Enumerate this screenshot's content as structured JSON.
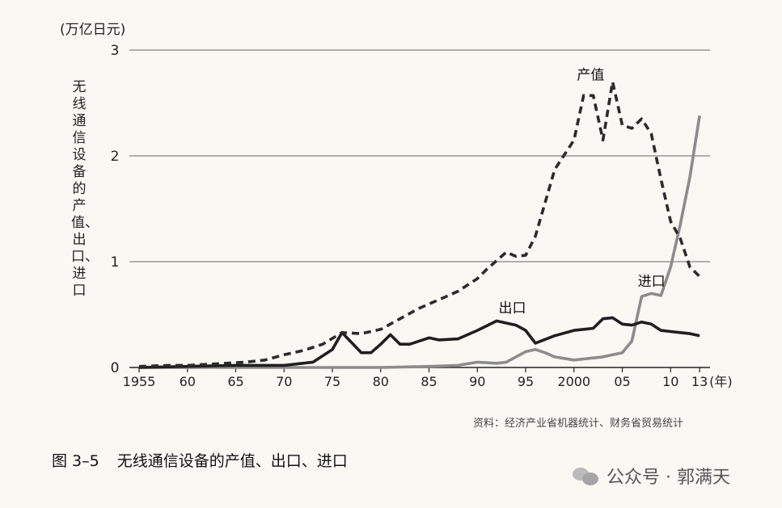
{
  "figure": {
    "unit_label": "(万亿日元)",
    "y_axis_title": "无线通信设备的产值、出口、进口",
    "source": "资料：经济产业省机器统计、财务省贸易统计",
    "caption_number": "图 3–5",
    "caption_text": "无线通信设备的产值、出口、进口"
  },
  "watermark": {
    "text": "公众号 · 郭满天",
    "icon": "wechat-icon"
  },
  "chart_data": {
    "type": "line",
    "title": "",
    "xlabel": "(年)",
    "ylabel": "无线通信设备的产值、出口、进口",
    "unit": "万亿日元",
    "xlim": [
      1955,
      2013
    ],
    "ylim": [
      0,
      3
    ],
    "grid": "horizontal",
    "x_tick_values": [
      1955,
      1960,
      1965,
      1970,
      1975,
      1980,
      1985,
      1990,
      1995,
      2000,
      2005,
      2010,
      2013
    ],
    "x_tick_labels": [
      "1955",
      "60",
      "65",
      "70",
      "75",
      "80",
      "85",
      "90",
      "95",
      "2000",
      "05",
      "10",
      "13"
    ],
    "y_ticks": [
      0,
      1,
      2,
      3
    ],
    "y_tick_labels": [
      "0",
      "1",
      "2",
      "3"
    ],
    "colors": {
      "production": "#2b2b2b",
      "exports": "#1f1f1f",
      "imports": "#8c8c8c"
    },
    "series": [
      {
        "name": "产值",
        "style": "dashed",
        "x": [
          1955,
          1958,
          1960,
          1962,
          1964,
          1966,
          1968,
          1970,
          1972,
          1974,
          1976,
          1978,
          1980,
          1982,
          1984,
          1986,
          1988,
          1990,
          1991,
          1993,
          1994,
          1995,
          1996,
          1998,
          2000,
          2001,
          2002,
          2003,
          2004,
          2005,
          2006,
          2007,
          2008,
          2009,
          2010,
          2011,
          2012,
          2013
        ],
        "values": [
          0.01,
          0.02,
          0.02,
          0.03,
          0.04,
          0.05,
          0.07,
          0.12,
          0.16,
          0.22,
          0.33,
          0.32,
          0.36,
          0.46,
          0.56,
          0.64,
          0.72,
          0.84,
          0.93,
          1.09,
          1.05,
          1.06,
          1.24,
          1.87,
          2.15,
          2.57,
          2.57,
          2.15,
          2.7,
          2.29,
          2.26,
          2.35,
          2.21,
          1.78,
          1.38,
          1.22,
          0.95,
          0.86
        ]
      },
      {
        "name": "出口",
        "style": "solid",
        "x": [
          1955,
          1960,
          1965,
          1970,
          1973,
          1975,
          1976,
          1978,
          1979,
          1980,
          1981,
          1982,
          1983,
          1985,
          1986,
          1988,
          1990,
          1992,
          1994,
          1995,
          1996,
          1998,
          2000,
          2001,
          2002,
          2003,
          2004,
          2005,
          2006,
          2007,
          2008,
          2009,
          2010,
          2011,
          2012,
          2013
        ],
        "values": [
          0.0,
          0.01,
          0.02,
          0.02,
          0.05,
          0.17,
          0.33,
          0.14,
          0.14,
          0.22,
          0.31,
          0.22,
          0.22,
          0.28,
          0.26,
          0.27,
          0.35,
          0.44,
          0.4,
          0.35,
          0.23,
          0.3,
          0.35,
          0.36,
          0.37,
          0.46,
          0.47,
          0.41,
          0.4,
          0.43,
          0.41,
          0.35,
          0.34,
          0.33,
          0.32,
          0.3
        ]
      },
      {
        "name": "进口",
        "style": "solid",
        "x": [
          1955,
          1970,
          1980,
          1985,
          1988,
          1990,
          1992,
          1993,
          1994,
          1995,
          1996,
          1997,
          1998,
          2000,
          2001,
          2002,
          2003,
          2004,
          2005,
          2006,
          2007,
          2008,
          2009,
          2010,
          2011,
          2012,
          2013
        ],
        "values": [
          0.0,
          0.0,
          0.0,
          0.01,
          0.02,
          0.05,
          0.04,
          0.05,
          0.1,
          0.15,
          0.17,
          0.14,
          0.1,
          0.07,
          0.08,
          0.09,
          0.1,
          0.12,
          0.14,
          0.25,
          0.67,
          0.7,
          0.68,
          0.95,
          1.35,
          1.8,
          2.38
        ]
      }
    ],
    "annotations": [
      {
        "text": "产值",
        "series": "产值"
      },
      {
        "text": "出口",
        "series": "出口"
      },
      {
        "text": "进口",
        "series": "进口"
      }
    ]
  }
}
